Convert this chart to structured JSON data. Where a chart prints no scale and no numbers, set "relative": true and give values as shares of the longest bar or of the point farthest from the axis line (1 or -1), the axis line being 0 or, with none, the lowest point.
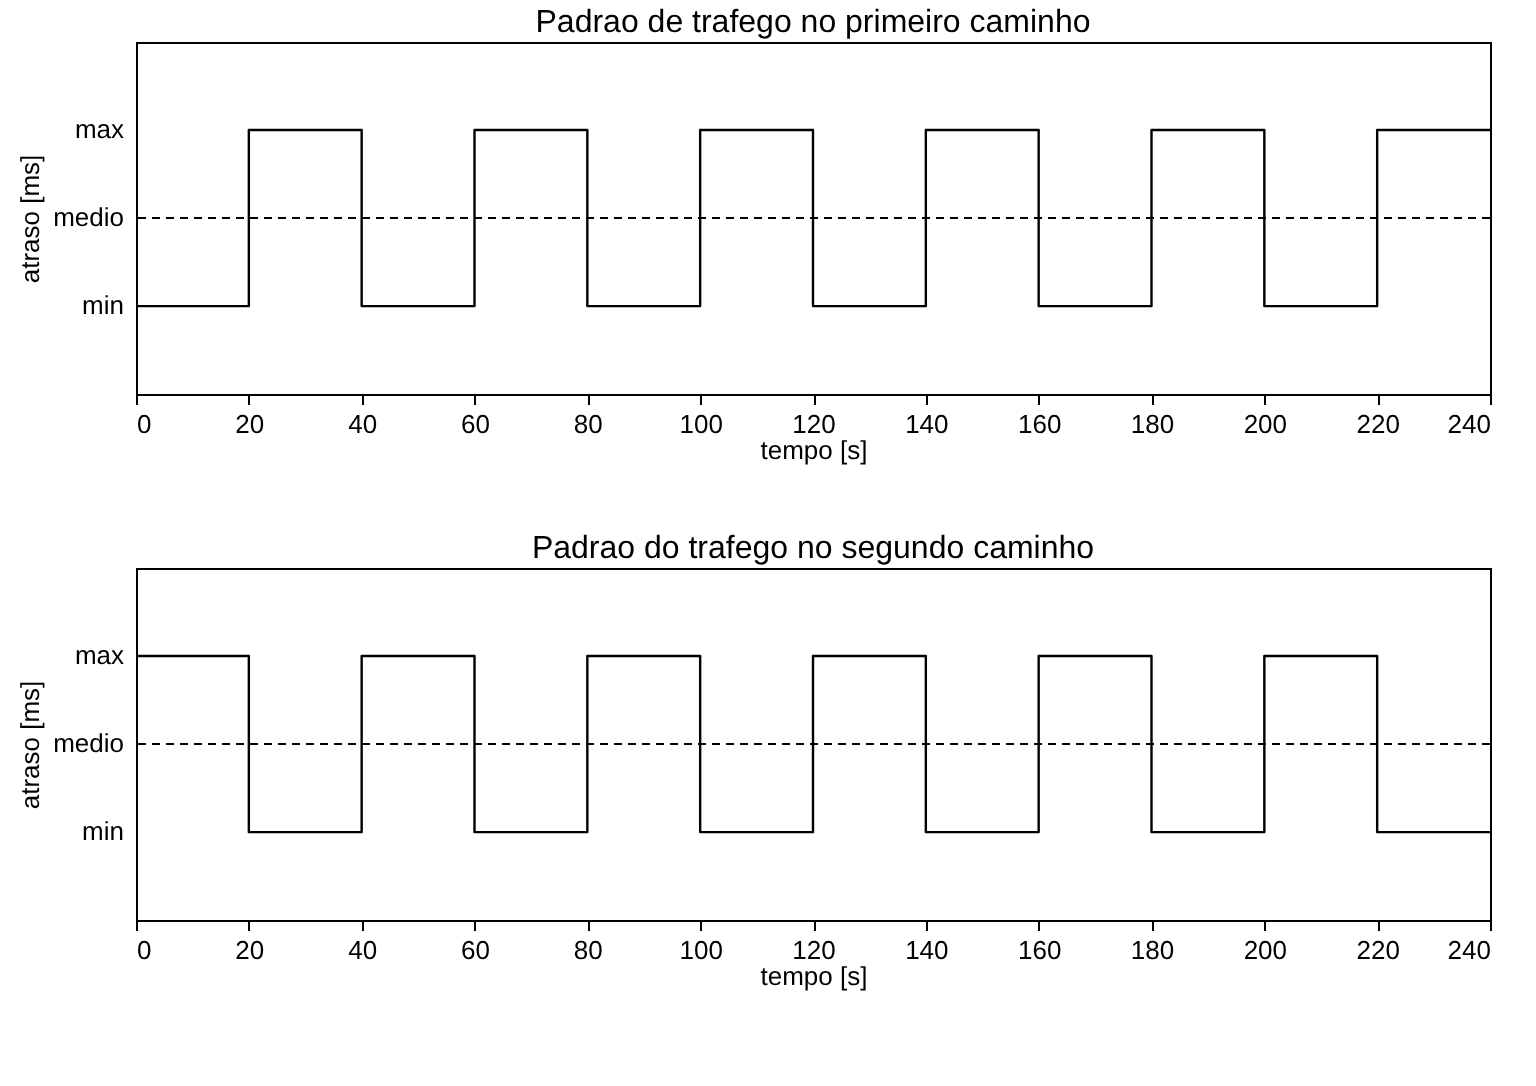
{
  "chart_data": [
    {
      "type": "step",
      "title": "Padrao de trafego no primeiro caminho",
      "xlabel": "tempo [s]",
      "ylabel": "atraso [ms]",
      "x": [
        0,
        20,
        40,
        60,
        80,
        100,
        120,
        140,
        160,
        180,
        200,
        220,
        240
      ],
      "series": [
        {
          "color": "#000000",
          "values": [
            0.333,
            1,
            0.333,
            1,
            0.333,
            1,
            0.333,
            1,
            0.333,
            1,
            0.333,
            1,
            1
          ]
        }
      ],
      "relative": true,
      "xlim": [
        0,
        240
      ],
      "xticks": [
        0,
        20,
        40,
        60,
        80,
        100,
        120,
        140,
        160,
        180,
        200,
        220,
        240
      ],
      "annotations": [
        "max",
        "medio",
        "min"
      ],
      "ref_lines": [
        {
          "axis": "y",
          "value": 0.667,
          "color": "#000000",
          "line_style": "dashed"
        }
      ],
      "grid": false
    },
    {
      "type": "step",
      "title": "Padrao do trafego no segundo caminho",
      "xlabel": "tempo [s]",
      "ylabel": "atraso [ms]",
      "x": [
        0,
        20,
        40,
        60,
        80,
        100,
        120,
        140,
        160,
        180,
        200,
        220,
        240
      ],
      "series": [
        {
          "color": "#000000",
          "values": [
            1,
            0.333,
            1,
            0.333,
            1,
            0.333,
            1,
            0.333,
            1,
            0.333,
            1,
            0.333,
            0.333
          ]
        }
      ],
      "relative": true,
      "xlim": [
        0,
        240
      ],
      "xticks": [
        0,
        20,
        40,
        60,
        80,
        100,
        120,
        140,
        160,
        180,
        200,
        220,
        240
      ],
      "annotations": [
        "max",
        "medio",
        "min"
      ],
      "ref_lines": [
        {
          "axis": "y",
          "value": 0.667,
          "color": "#000000",
          "line_style": "dashed"
        }
      ],
      "grid": false
    }
  ]
}
